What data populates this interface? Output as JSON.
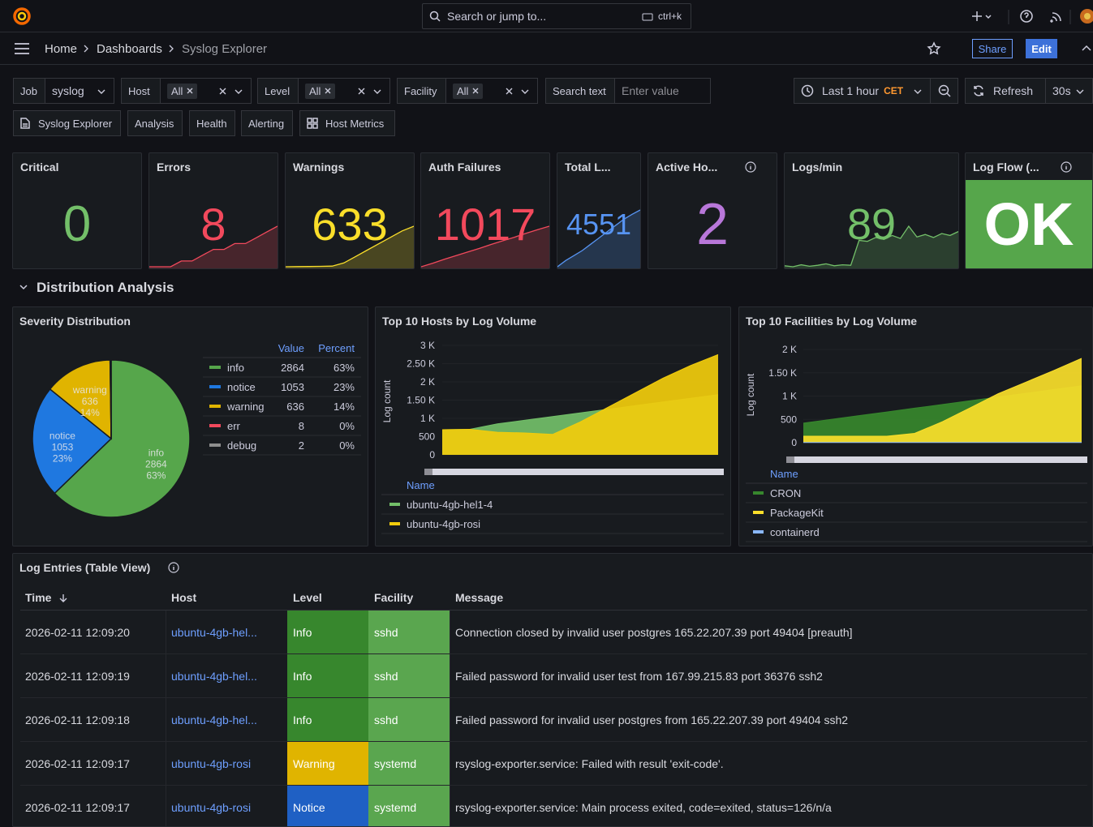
{
  "topbar": {
    "search": "Search or jump to...",
    "shortcut": "ctrl+k"
  },
  "breadcrumbs": [
    "Home",
    "Dashboards",
    "Syslog Explorer"
  ],
  "actions": {
    "share": "Share",
    "edit": "Edit"
  },
  "variables": [
    {
      "label": "Job",
      "value": "syslog"
    },
    {
      "label": "Host",
      "value": "All"
    },
    {
      "label": "Level",
      "value": "All"
    },
    {
      "label": "Facility",
      "value": "All"
    },
    {
      "label": "Search text",
      "placeholder": "Enter value"
    }
  ],
  "time": {
    "range": "Last 1 hour",
    "zone": "CET",
    "refresh": "Refresh",
    "interval": "30s"
  },
  "links": [
    "Syslog Explorer",
    "Analysis",
    "Health",
    "Alerting",
    "Host Metrics"
  ],
  "stats": [
    {
      "title": "Critical",
      "value": 0,
      "color": "#73bf69"
    },
    {
      "title": "Errors",
      "value": 8,
      "color": "#f2495c",
      "spark": [
        1,
        1,
        1,
        2,
        2,
        3,
        4,
        4,
        5,
        5,
        6,
        7,
        8
      ]
    },
    {
      "title": "Warnings",
      "value": 633,
      "color": "#fade2a",
      "spark": [
        0,
        2,
        4,
        6,
        10,
        60,
        160,
        260,
        360,
        460,
        560,
        633
      ]
    },
    {
      "title": "Auth Failures",
      "value": 1017,
      "color": "#f2495c",
      "spark": [
        0,
        90,
        190,
        280,
        370,
        460,
        560,
        650,
        740,
        840,
        930,
        1017
      ]
    },
    {
      "title": "Total L...",
      "value": 4551,
      "color": "#5794f2",
      "spark": [
        0,
        500,
        900,
        1300,
        1800,
        2300,
        2800,
        3300,
        3800,
        4200,
        4551
      ]
    },
    {
      "title": "Active Ho...",
      "value": 2,
      "color": "#b877d9"
    },
    {
      "title": "Logs/min",
      "value": 89,
      "color": "#73bf69",
      "spark": [
        8,
        6,
        10,
        7,
        9,
        12,
        8,
        10,
        9,
        60,
        58,
        66,
        62,
        70,
        64,
        89,
        67,
        72,
        66,
        74,
        70,
        78
      ]
    },
    {
      "title": "Log Flow (...",
      "value": "OK",
      "color": "#ffffff",
      "background": "#56a64b"
    }
  ],
  "section": "Distribution Analysis",
  "severity": {
    "title": "Severity Distribution",
    "columns": [
      "Value",
      "Percent"
    ],
    "rows": [
      {
        "name": "info",
        "value": 2864,
        "percent": "63%",
        "color": "#56a64b"
      },
      {
        "name": "notice",
        "value": 1053,
        "percent": "23%",
        "color": "#1f78e0"
      },
      {
        "name": "warning",
        "value": 636,
        "percent": "14%",
        "color": "#e0b400"
      },
      {
        "name": "err",
        "value": 8,
        "percent": "0%",
        "color": "#f2495c"
      },
      {
        "name": "debug",
        "value": 2,
        "percent": "0%",
        "color": "#8e8e8e"
      }
    ]
  },
  "hosts": {
    "title": "Top 10 Hosts by Log Volume",
    "y_label": "Log count",
    "ylim": [
      0,
      3000
    ],
    "yticks": [
      0,
      500,
      {
        "value": 1000,
        "label": "1 K"
      },
      {
        "value": 1500,
        "label": "1.50 K"
      },
      {
        "value": 2000,
        "label": "2 K"
      },
      {
        "value": 2500,
        "label": "2.50 K"
      },
      {
        "value": 3000,
        "label": "3 K"
      }
    ],
    "legend_title": "Name",
    "series": [
      {
        "name": "ubuntu-4gb-hel1-4",
        "color": "#73bf69",
        "values": [
          690,
          700,
          850,
          950,
          1050,
          1150,
          1250,
          1350,
          1450,
          1550,
          1650
        ]
      },
      {
        "name": "ubuntu-4gb-rosi",
        "color": "#f2cc0c",
        "values": [
          690,
          700,
          620,
          600,
          560,
          900,
          1300,
          1700,
          2100,
          2450,
          2750
        ]
      }
    ]
  },
  "facilities": {
    "title": "Top 10 Facilities by Log Volume",
    "y_label": "Log count",
    "ylim": [
      0,
      2000
    ],
    "yticks": [
      0,
      500,
      {
        "value": 1000,
        "label": "1 K"
      },
      {
        "value": 1500,
        "label": "1.50 K"
      },
      {
        "value": 2000,
        "label": "2 K"
      }
    ],
    "legend_title": "Name",
    "series": [
      {
        "name": "CRON",
        "color": "#37872d",
        "values": [
          420,
          500,
          580,
          660,
          740,
          820,
          900,
          980,
          1060,
          1140,
          1220
        ]
      },
      {
        "name": "PackageKit",
        "color": "#fade2a",
        "values": [
          140,
          140,
          140,
          140,
          200,
          450,
          750,
          1050,
          1300,
          1550,
          1810
        ]
      },
      {
        "name": "containerd",
        "color": "#8ab8ff",
        "values": [
          5,
          5,
          5,
          5,
          5,
          5,
          5,
          5,
          5,
          5,
          5
        ]
      }
    ]
  },
  "table": {
    "title": "Log Entries (Table View)",
    "columns": [
      "Time",
      "Host",
      "Level",
      "Facility",
      "Message"
    ],
    "facility_color": "#5aa64f",
    "rows": [
      {
        "time": "2026-02-11 12:09:20",
        "host": "ubuntu-4gb-hel...",
        "level": "Info",
        "level_color": "#37872d",
        "facility": "sshd",
        "message": "Connection closed by invalid user postgres 165.22.207.39 port 49404 [preauth]"
      },
      {
        "time": "2026-02-11 12:09:19",
        "host": "ubuntu-4gb-hel...",
        "level": "Info",
        "level_color": "#37872d",
        "facility": "sshd",
        "message": "Failed password for invalid user test from 167.99.215.83 port 36376 ssh2"
      },
      {
        "time": "2026-02-11 12:09:18",
        "host": "ubuntu-4gb-hel...",
        "level": "Info",
        "level_color": "#37872d",
        "facility": "sshd",
        "message": "Failed password for invalid user postgres from 165.22.207.39 port 49404 ssh2"
      },
      {
        "time": "2026-02-11 12:09:17",
        "host": "ubuntu-4gb-rosi",
        "level": "Warning",
        "level_color": "#e0b400",
        "facility": "systemd",
        "message": "rsyslog-exporter.service: Failed with result 'exit-code'."
      },
      {
        "time": "2026-02-11 12:09:17",
        "host": "ubuntu-4gb-rosi",
        "level": "Notice",
        "level_color": "#1f60c4",
        "facility": "systemd",
        "message": "rsyslog-exporter.service: Main process exited, code=exited, status=126/n/a"
      }
    ]
  }
}
